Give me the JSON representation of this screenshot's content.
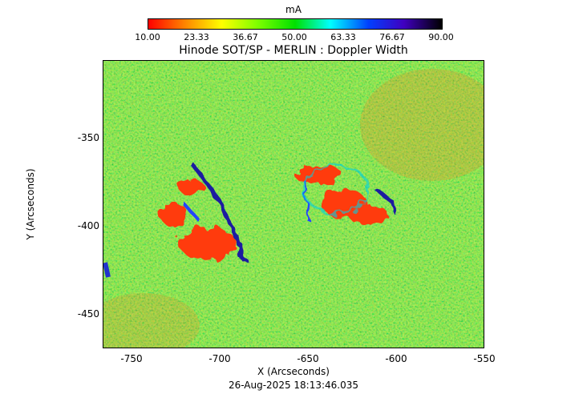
{
  "colorbar": {
    "unit": "mA",
    "labels": [
      "10.00",
      "23.33",
      "36.67",
      "50.00",
      "63.33",
      "76.67",
      "90.00"
    ]
  },
  "title": "Hinode SOT/SP - MERLIN : Doppler Width",
  "axes": {
    "x_ticks": [
      "-750",
      "-700",
      "-650",
      "-600",
      "-550"
    ],
    "y_ticks": [
      "-350",
      "-400",
      "-450"
    ],
    "xlabel": "X (Arcseconds)",
    "ylabel": "Y (Arcseconds)",
    "x_range": [
      -766,
      -550
    ],
    "y_range": [
      -307,
      -470
    ]
  },
  "timestamp": "26-Aug-2025 18:13:46.035"
}
